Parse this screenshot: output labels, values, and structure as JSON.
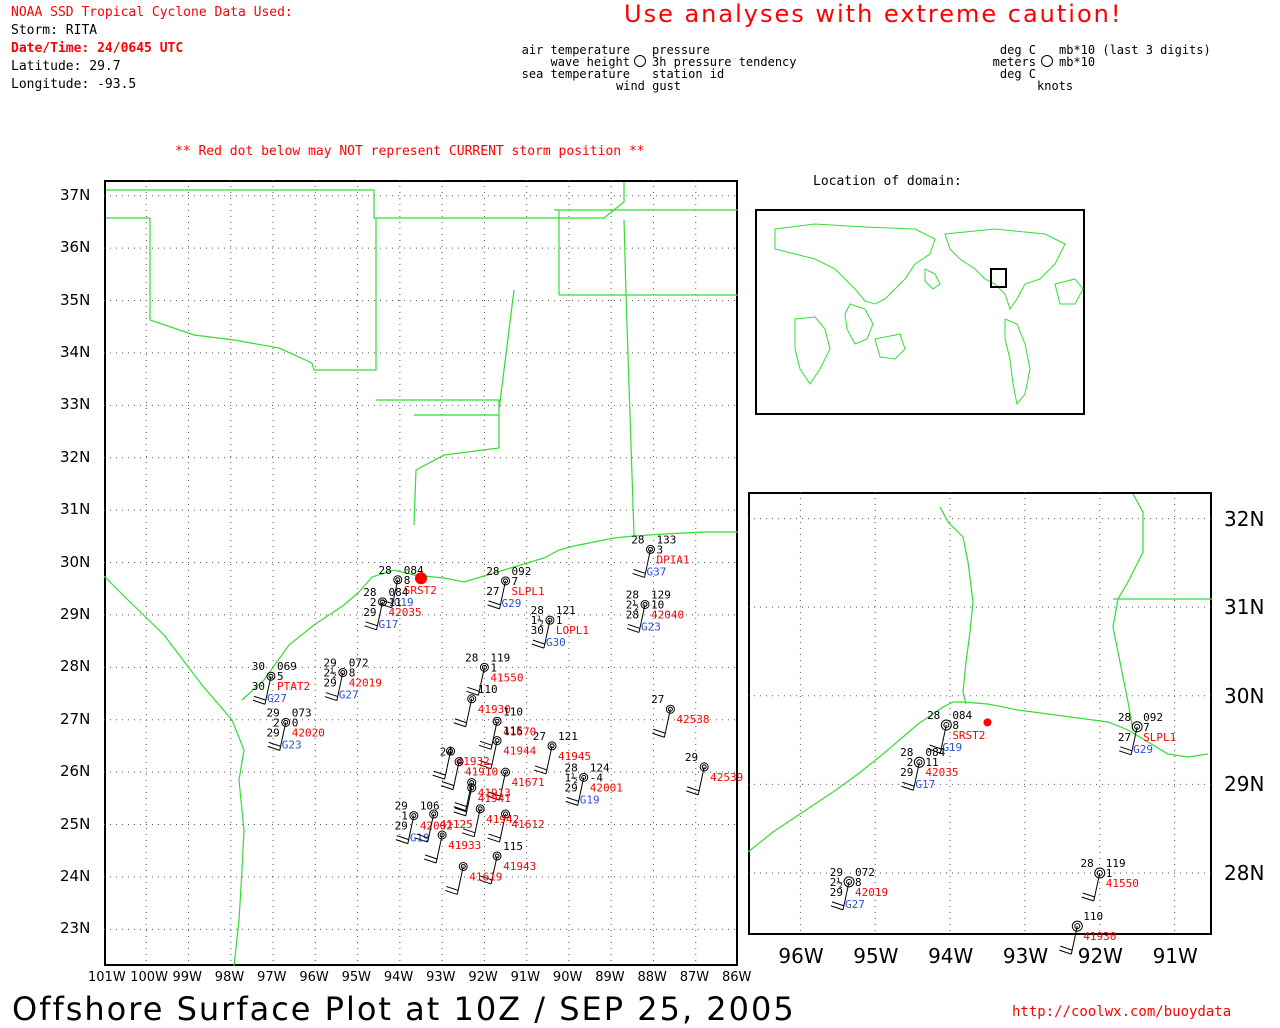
{
  "header": {
    "source_title": "NOAA SSD Tropical Cyclone Data Used:",
    "storm_line": "Storm: RITA",
    "datetime_line": "Date/Time: 24/0645 UTC",
    "latitude_line": "Latitude: 29.7",
    "longitude_line": "Longitude: -93.5",
    "caution": "Use analyses with extreme caution!"
  },
  "legend": {
    "left_col": [
      "air temperature",
      "wave height",
      "sea temperature"
    ],
    "right_col": [
      "pressure",
      "3h pressure tendency",
      "station id",
      "wind gust"
    ],
    "units_left": [
      "deg C",
      "meters",
      "deg C"
    ],
    "units_right": [
      "mb*10 (last 3 digits)",
      "mb*10",
      "knots"
    ]
  },
  "warning_note": "** Red dot below may NOT represent CURRENT storm position **",
  "inset_title": "Location of domain:",
  "footer": {
    "title": "Offshore Surface Plot at 10Z / SEP 25, 2005",
    "url": "http://coolwx.com/buoydata"
  },
  "main_map": {
    "lat_labels": [
      "37N",
      "36N",
      "35N",
      "34N",
      "33N",
      "32N",
      "31N",
      "30N",
      "29N",
      "28N",
      "27N",
      "26N",
      "25N",
      "24N",
      "23N"
    ],
    "lon_labels": [
      "101W",
      "100W",
      "99W",
      "98W",
      "97W",
      "96W",
      "95W",
      "94W",
      "93W",
      "92W",
      "91W",
      "90W",
      "89W",
      "88W",
      "87W",
      "86W"
    ]
  },
  "zoom_map": {
    "lat_labels": [
      "32N",
      "31N",
      "30N",
      "29N",
      "28N"
    ],
    "lon_labels": [
      "96W",
      "95W",
      "94W",
      "93W",
      "92W",
      "91W"
    ]
  },
  "colors": {
    "coast": "#33dd33",
    "station_id": "#ff0000",
    "gust": "#2b4fd8",
    "storm_dot": "#ff0000"
  },
  "storm": {
    "lat": 29.7,
    "lon": -93.5
  },
  "stations": [
    {
      "id": "SRST2",
      "lat": 29.67,
      "lon": -94.05,
      "at": "28",
      "pres": "084",
      "tend": "8",
      "gust": "G19"
    },
    {
      "id": "42035",
      "lat": 29.25,
      "lon": -94.41,
      "at": "28",
      "st": "29",
      "wh": "2",
      "pres": "084",
      "tend": "11",
      "gust": "G17"
    },
    {
      "id": "SLPL1",
      "lat": 29.65,
      "lon": -91.5,
      "at": "28",
      "st": "27",
      "pres": "092",
      "tend": "7",
      "gust": "G29"
    },
    {
      "id": "LOPL1",
      "lat": 28.9,
      "lon": -90.45,
      "at": "28",
      "st": "30",
      "wh": "1½",
      "pres": "121",
      "tend": "1",
      "gust": "G30"
    },
    {
      "id": "PTAT2",
      "lat": 27.83,
      "lon": -97.05,
      "at": "30",
      "st": "30",
      "pres": "069",
      "tend": "5",
      "gust": "G27"
    },
    {
      "id": "42019",
      "lat": 27.9,
      "lon": -95.35,
      "at": "29",
      "st": "29",
      "wh": "2½",
      "pres": "072",
      "tend": "8",
      "gust": "G27"
    },
    {
      "id": "42020",
      "lat": 26.95,
      "lon": -96.7,
      "at": "29",
      "st": "29",
      "wh": "2",
      "pres": "073",
      "tend": "0",
      "gust": "G23"
    },
    {
      "id": "DPIA1",
      "lat": 30.25,
      "lon": -88.07,
      "at": "28",
      "pres": "133",
      "tend": "3",
      "gust": "G37"
    },
    {
      "id": "42040",
      "lat": 29.2,
      "lon": -88.2,
      "at": "28",
      "st": "28",
      "wh": "2½",
      "pres": "129",
      "tend": "10",
      "gust": "G23"
    },
    {
      "id": "41550",
      "lat": 28.0,
      "lon": -92.0,
      "at": "28",
      "pres": "119",
      "tend": "1"
    },
    {
      "id": "41930",
      "lat": 27.4,
      "lon": -92.3,
      "pres": "110"
    },
    {
      "id": "42538",
      "lat": 27.2,
      "lon": -87.6,
      "at": "27"
    },
    {
      "id": "42539",
      "lat": 26.1,
      "lon": -86.8,
      "at": "29"
    },
    {
      "id": "42001",
      "lat": 25.9,
      "lon": -89.65,
      "at": "28",
      "st": "29",
      "wh": "1½",
      "pres": "124",
      "tend": "-4",
      "gust": "G19"
    },
    {
      "id": "42002",
      "lat": 25.17,
      "lon": -93.67,
      "at": "29",
      "st": "29",
      "wh": "1",
      "pres": "106",
      "gust": "G19"
    },
    {
      "id": "41945",
      "lat": 26.5,
      "lon": -90.4,
      "at": "27",
      "pres": "121"
    },
    {
      "id": "41670",
      "lat": 26.97,
      "lon": -91.7,
      "pres": "110"
    },
    {
      "id": "41671",
      "lat": 26.0,
      "lon": -91.5
    },
    {
      "id": "41612",
      "lat": 25.2,
      "lon": -91.5
    },
    {
      "id": "41943",
      "lat": 24.4,
      "lon": -91.7,
      "pres": "115"
    },
    {
      "id": "41619",
      "lat": 24.2,
      "lon": -92.5
    },
    {
      "id": "41933",
      "lat": 24.8,
      "lon": -93.0
    },
    {
      "id": "41942",
      "lat": 25.3,
      "lon": -92.1
    },
    {
      "id": "41941",
      "lat": 25.7,
      "lon": -92.3
    },
    {
      "id": "41944",
      "lat": 26.6,
      "lon": -91.7,
      "pres": "115"
    },
    {
      "id": "41932",
      "lat": 26.4,
      "lon": -92.8
    },
    {
      "id": "41910",
      "lat": 26.2,
      "lon": -92.6,
      "at": "24"
    },
    {
      "id": "41913",
      "lat": 25.8,
      "lon": -92.3
    },
    {
      "id": "41125",
      "lat": 25.2,
      "lon": -93.2
    }
  ]
}
